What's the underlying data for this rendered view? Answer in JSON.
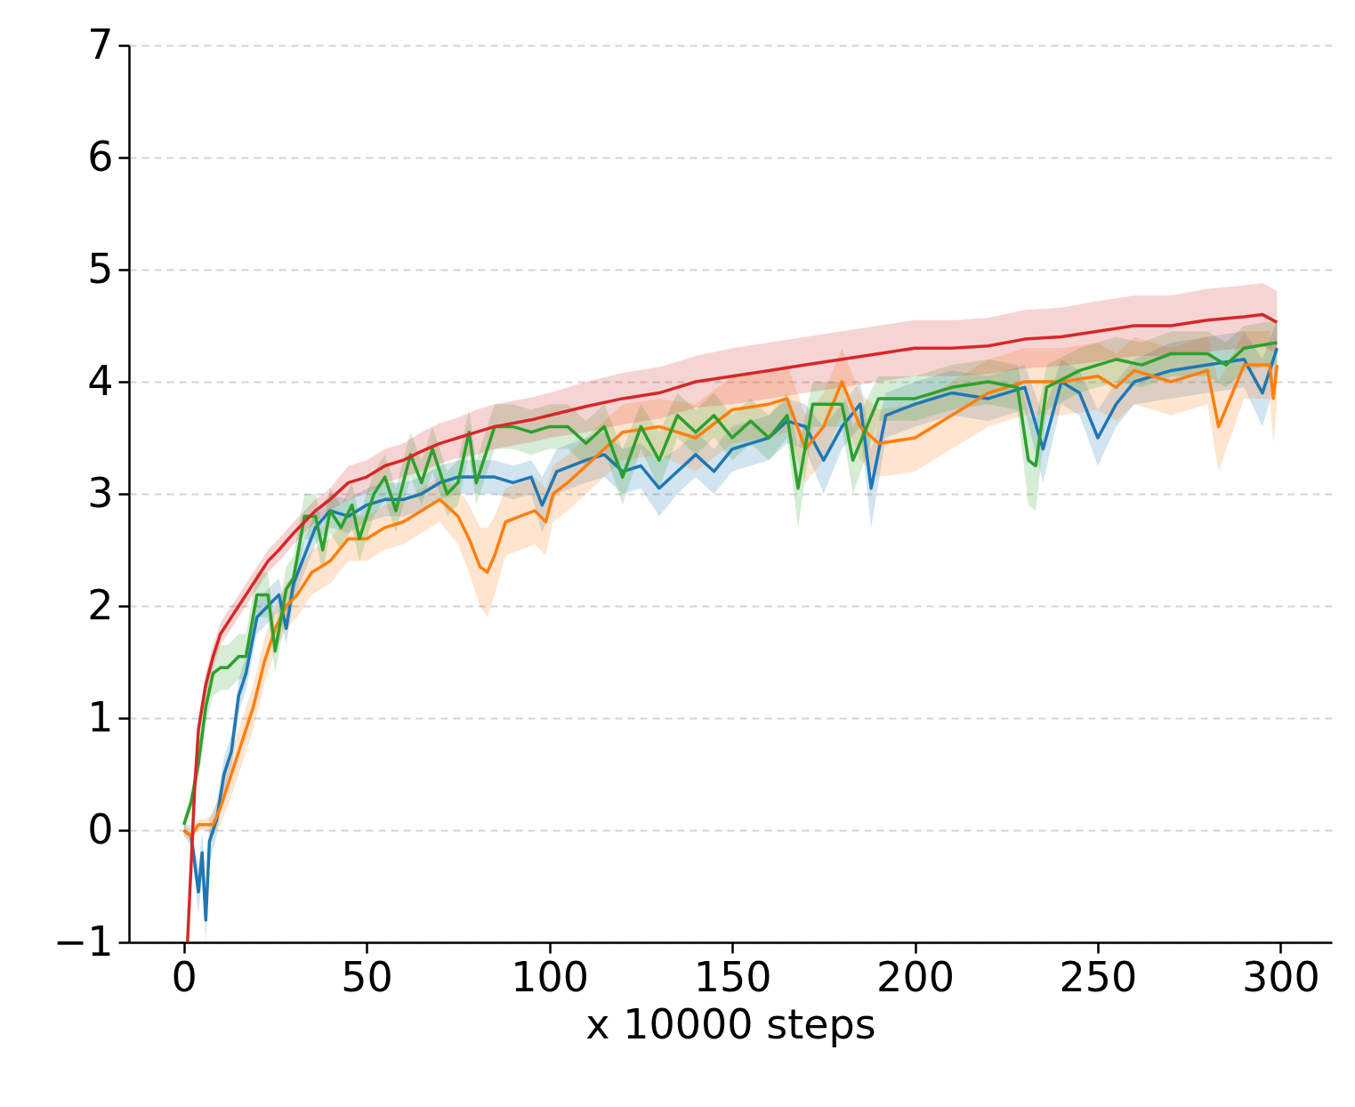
{
  "chart_data": {
    "type": "line",
    "xlabel": "x 10000 steps",
    "xlim": [
      -15,
      314
    ],
    "xticks": [
      0,
      50,
      100,
      150,
      200,
      250,
      300
    ],
    "ylim": [
      -1,
      7
    ],
    "yticks": [
      {
        "value": -1,
        "label": "−1"
      },
      0,
      1,
      2,
      3,
      4,
      5,
      6,
      7
    ],
    "grid": "y",
    "series": [
      {
        "color": "#1f77b4",
        "x": [
          0,
          2,
          4,
          5,
          6,
          7,
          9,
          11,
          13,
          15,
          17,
          20,
          23,
          26,
          28,
          30,
          33,
          36,
          40,
          45,
          50,
          55,
          60,
          65,
          70,
          75,
          80,
          85,
          90,
          95,
          98,
          102,
          110,
          115,
          120,
          125,
          130,
          135,
          140,
          145,
          150,
          155,
          160,
          165,
          170,
          175,
          180,
          185,
          188,
          192,
          200,
          210,
          220,
          230,
          235,
          240,
          245,
          250,
          255,
          260,
          270,
          280,
          290,
          295,
          299
        ],
        "values": [
          0,
          -0.05,
          -0.55,
          -0.2,
          -0.8,
          -0.1,
          0.1,
          0.5,
          0.7,
          1.2,
          1.4,
          1.9,
          2.0,
          2.1,
          1.8,
          2.2,
          2.45,
          2.7,
          2.85,
          2.8,
          2.9,
          2.95,
          2.95,
          3.0,
          3.1,
          3.15,
          3.15,
          3.15,
          3.1,
          3.15,
          2.9,
          3.2,
          3.3,
          3.35,
          3.2,
          3.25,
          3.05,
          3.2,
          3.35,
          3.2,
          3.4,
          3.45,
          3.5,
          3.65,
          3.6,
          3.3,
          3.6,
          3.8,
          3.05,
          3.7,
          3.8,
          3.9,
          3.85,
          3.95,
          3.4,
          4.0,
          3.9,
          3.5,
          3.8,
          4.0,
          4.1,
          4.15,
          4.2,
          3.9,
          4.3
        ],
        "lower": [
          -0.05,
          -0.15,
          -0.75,
          -0.4,
          -1.0,
          -0.3,
          -0.05,
          0.35,
          0.55,
          1.05,
          1.25,
          1.75,
          1.85,
          1.95,
          1.65,
          2.05,
          2.3,
          2.55,
          2.7,
          2.65,
          2.75,
          2.8,
          2.8,
          2.85,
          2.95,
          3.0,
          3.0,
          3.0,
          2.95,
          3.0,
          2.65,
          3.0,
          3.1,
          3.15,
          3.0,
          3.05,
          2.8,
          3.0,
          3.15,
          3.0,
          3.2,
          3.25,
          3.3,
          3.45,
          3.4,
          3.0,
          3.4,
          3.6,
          2.7,
          3.5,
          3.6,
          3.7,
          3.65,
          3.75,
          3.1,
          3.8,
          3.7,
          3.25,
          3.6,
          3.8,
          3.85,
          3.9,
          3.95,
          3.6,
          4.05
        ],
        "upper": [
          0.05,
          0.05,
          -0.35,
          0.0,
          -0.6,
          0.1,
          0.25,
          0.65,
          0.85,
          1.35,
          1.55,
          2.05,
          2.15,
          2.25,
          1.95,
          2.35,
          2.6,
          2.85,
          3.0,
          2.95,
          3.05,
          3.1,
          3.1,
          3.15,
          3.25,
          3.3,
          3.3,
          3.3,
          3.25,
          3.3,
          3.15,
          3.4,
          3.5,
          3.55,
          3.4,
          3.45,
          3.3,
          3.4,
          3.55,
          3.4,
          3.6,
          3.65,
          3.7,
          3.85,
          3.8,
          3.6,
          3.8,
          4.0,
          3.4,
          3.9,
          4.0,
          4.1,
          4.05,
          4.15,
          3.7,
          4.2,
          4.1,
          3.75,
          4.0,
          4.2,
          4.35,
          4.4,
          4.45,
          4.2,
          4.55
        ]
      },
      {
        "color": "#ff7f0e",
        "x": [
          0,
          2,
          4,
          6,
          8,
          10,
          13,
          16,
          19,
          22,
          25,
          28,
          31,
          35,
          40,
          45,
          50,
          55,
          60,
          65,
          70,
          75,
          78,
          81,
          83,
          85,
          88,
          92,
          96,
          99,
          101,
          105,
          110,
          120,
          130,
          140,
          150,
          160,
          165,
          170,
          175,
          180,
          185,
          190,
          200,
          210,
          215,
          220,
          230,
          240,
          250,
          255,
          260,
          270,
          280,
          283,
          290,
          297,
          298,
          299
        ],
        "values": [
          0,
          -0.05,
          0.05,
          0.05,
          0.05,
          0.2,
          0.5,
          0.8,
          1.1,
          1.5,
          1.8,
          2.0,
          2.1,
          2.3,
          2.4,
          2.6,
          2.6,
          2.7,
          2.75,
          2.85,
          2.95,
          2.8,
          2.6,
          2.35,
          2.3,
          2.45,
          2.75,
          2.8,
          2.85,
          2.75,
          3.0,
          3.1,
          3.25,
          3.55,
          3.6,
          3.5,
          3.75,
          3.8,
          3.85,
          3.4,
          3.6,
          4.0,
          3.6,
          3.45,
          3.5,
          3.7,
          3.8,
          3.9,
          4.0,
          4.0,
          4.05,
          3.95,
          4.1,
          4.0,
          4.1,
          3.6,
          4.15,
          4.15,
          3.85,
          4.15
        ],
        "lower": [
          -0.05,
          -0.1,
          0.0,
          0.0,
          -0.05,
          0.05,
          0.3,
          0.6,
          0.9,
          1.3,
          1.6,
          1.8,
          1.9,
          2.1,
          2.2,
          2.4,
          2.4,
          2.5,
          2.55,
          2.65,
          2.75,
          2.55,
          2.3,
          2.0,
          1.9,
          2.1,
          2.45,
          2.5,
          2.55,
          2.45,
          2.75,
          2.85,
          3.0,
          3.3,
          3.35,
          3.2,
          3.45,
          3.5,
          3.55,
          3.1,
          3.3,
          3.7,
          3.3,
          3.15,
          3.2,
          3.4,
          3.5,
          3.6,
          3.7,
          3.7,
          3.75,
          3.65,
          3.8,
          3.7,
          3.8,
          3.2,
          3.85,
          3.85,
          3.45,
          3.8
        ],
        "upper": [
          0.05,
          0.0,
          0.1,
          0.1,
          0.15,
          0.35,
          0.7,
          1.0,
          1.3,
          1.7,
          2.0,
          2.2,
          2.3,
          2.5,
          2.6,
          2.8,
          2.8,
          2.9,
          2.95,
          3.05,
          3.15,
          3.05,
          2.9,
          2.7,
          2.7,
          2.8,
          3.05,
          3.1,
          3.15,
          3.05,
          3.25,
          3.35,
          3.5,
          3.8,
          3.85,
          3.8,
          4.05,
          4.1,
          4.15,
          3.7,
          3.9,
          4.3,
          3.9,
          3.75,
          3.8,
          4.0,
          4.1,
          4.2,
          4.3,
          4.3,
          4.35,
          4.25,
          4.4,
          4.3,
          4.4,
          4.0,
          4.45,
          4.45,
          4.25,
          4.5
        ]
      },
      {
        "color": "#2ca02c",
        "x": [
          0,
          2,
          4,
          6,
          8,
          10,
          12,
          15,
          17,
          20,
          23,
          25,
          28,
          30,
          33,
          36,
          38,
          40,
          43,
          46,
          48,
          52,
          55,
          58,
          62,
          65,
          68,
          72,
          75,
          78,
          80,
          85,
          90,
          95,
          100,
          105,
          110,
          115,
          120,
          125,
          130,
          135,
          140,
          145,
          150,
          155,
          160,
          165,
          168,
          172,
          180,
          183,
          190,
          200,
          210,
          220,
          228,
          231,
          233,
          236,
          245,
          255,
          262,
          270,
          280,
          285,
          290,
          299
        ],
        "values": [
          0.05,
          0.25,
          0.6,
          1.1,
          1.4,
          1.45,
          1.45,
          1.55,
          1.55,
          2.1,
          2.1,
          1.6,
          2.15,
          2.25,
          2.8,
          2.8,
          2.5,
          2.85,
          2.7,
          2.9,
          2.6,
          3.0,
          3.15,
          2.85,
          3.35,
          3.1,
          3.4,
          3.0,
          3.1,
          3.55,
          3.1,
          3.6,
          3.6,
          3.55,
          3.6,
          3.6,
          3.45,
          3.6,
          3.15,
          3.6,
          3.3,
          3.7,
          3.55,
          3.7,
          3.5,
          3.65,
          3.5,
          3.7,
          3.05,
          3.8,
          3.8,
          3.3,
          3.85,
          3.85,
          3.95,
          4.0,
          3.95,
          3.3,
          3.25,
          3.95,
          4.1,
          4.2,
          4.15,
          4.25,
          4.25,
          4.15,
          4.3,
          4.35
        ],
        "lower": [
          0.0,
          0.15,
          0.45,
          0.95,
          1.2,
          1.25,
          1.25,
          1.35,
          1.35,
          1.9,
          1.9,
          1.4,
          1.95,
          2.05,
          2.6,
          2.6,
          2.3,
          2.65,
          2.5,
          2.7,
          2.4,
          2.8,
          2.95,
          2.65,
          3.15,
          2.9,
          3.2,
          2.8,
          2.9,
          3.35,
          2.9,
          3.4,
          3.4,
          3.35,
          3.4,
          3.4,
          3.25,
          3.4,
          2.9,
          3.4,
          3.05,
          3.5,
          3.35,
          3.5,
          3.3,
          3.45,
          3.3,
          3.5,
          2.7,
          3.6,
          3.6,
          3.0,
          3.65,
          3.65,
          3.75,
          3.8,
          3.75,
          2.9,
          2.85,
          3.75,
          3.9,
          4.0,
          3.95,
          4.05,
          4.05,
          3.95,
          4.1,
          4.15
        ],
        "upper": [
          0.1,
          0.35,
          0.75,
          1.25,
          1.6,
          1.65,
          1.65,
          1.75,
          1.75,
          2.3,
          2.3,
          1.8,
          2.35,
          2.45,
          3.0,
          3.0,
          2.7,
          3.05,
          2.9,
          3.1,
          2.8,
          3.2,
          3.35,
          3.05,
          3.55,
          3.3,
          3.6,
          3.2,
          3.3,
          3.75,
          3.3,
          3.8,
          3.8,
          3.75,
          3.8,
          3.8,
          3.65,
          3.8,
          3.4,
          3.8,
          3.55,
          3.9,
          3.75,
          3.9,
          3.7,
          3.85,
          3.7,
          3.9,
          3.4,
          4.0,
          4.0,
          3.6,
          4.05,
          4.05,
          4.15,
          4.2,
          4.15,
          3.7,
          3.65,
          4.15,
          4.3,
          4.4,
          4.35,
          4.45,
          4.45,
          4.35,
          4.5,
          4.55
        ]
      },
      {
        "color": "#d62728",
        "x": [
          1,
          2,
          3,
          4,
          6,
          8,
          10,
          12,
          15,
          18,
          20,
          23,
          26,
          30,
          33,
          36,
          40,
          45,
          50,
          55,
          60,
          65,
          70,
          75,
          80,
          85,
          90,
          95,
          100,
          110,
          120,
          130,
          140,
          150,
          160,
          170,
          180,
          190,
          200,
          210,
          220,
          230,
          240,
          250,
          260,
          270,
          280,
          290,
          295,
          299
        ],
        "values": [
          -1.0,
          -0.3,
          0.4,
          0.9,
          1.3,
          1.55,
          1.75,
          1.85,
          2.0,
          2.15,
          2.25,
          2.4,
          2.5,
          2.65,
          2.75,
          2.85,
          2.95,
          3.1,
          3.15,
          3.25,
          3.3,
          3.38,
          3.45,
          3.5,
          3.55,
          3.6,
          3.63,
          3.66,
          3.7,
          3.78,
          3.85,
          3.9,
          4.0,
          4.05,
          4.1,
          4.15,
          4.2,
          4.25,
          4.3,
          4.3,
          4.32,
          4.38,
          4.4,
          4.45,
          4.5,
          4.5,
          4.55,
          4.58,
          4.6,
          4.53
        ],
        "lower": [
          -1.0,
          -0.4,
          0.3,
          0.8,
          1.2,
          1.45,
          1.65,
          1.75,
          1.9,
          2.05,
          2.15,
          2.3,
          2.4,
          2.55,
          2.65,
          2.75,
          2.85,
          2.95,
          3.0,
          3.1,
          3.15,
          3.2,
          3.27,
          3.32,
          3.35,
          3.4,
          3.43,
          3.46,
          3.5,
          3.55,
          3.62,
          3.67,
          3.77,
          3.8,
          3.85,
          3.9,
          3.95,
          4.0,
          4.05,
          4.05,
          4.07,
          4.12,
          4.14,
          4.18,
          4.23,
          4.23,
          4.27,
          4.3,
          4.32,
          4.25
        ],
        "upper": [
          -0.9,
          -0.2,
          0.5,
          1.0,
          1.4,
          1.65,
          1.85,
          1.95,
          2.1,
          2.25,
          2.35,
          2.5,
          2.6,
          2.75,
          2.85,
          2.95,
          3.05,
          3.25,
          3.3,
          3.4,
          3.45,
          3.55,
          3.63,
          3.68,
          3.75,
          3.8,
          3.83,
          3.86,
          3.9,
          4.0,
          4.08,
          4.13,
          4.23,
          4.3,
          4.35,
          4.4,
          4.45,
          4.5,
          4.55,
          4.55,
          4.57,
          4.64,
          4.66,
          4.72,
          4.77,
          4.77,
          4.83,
          4.86,
          4.88,
          4.81
        ]
      }
    ]
  }
}
